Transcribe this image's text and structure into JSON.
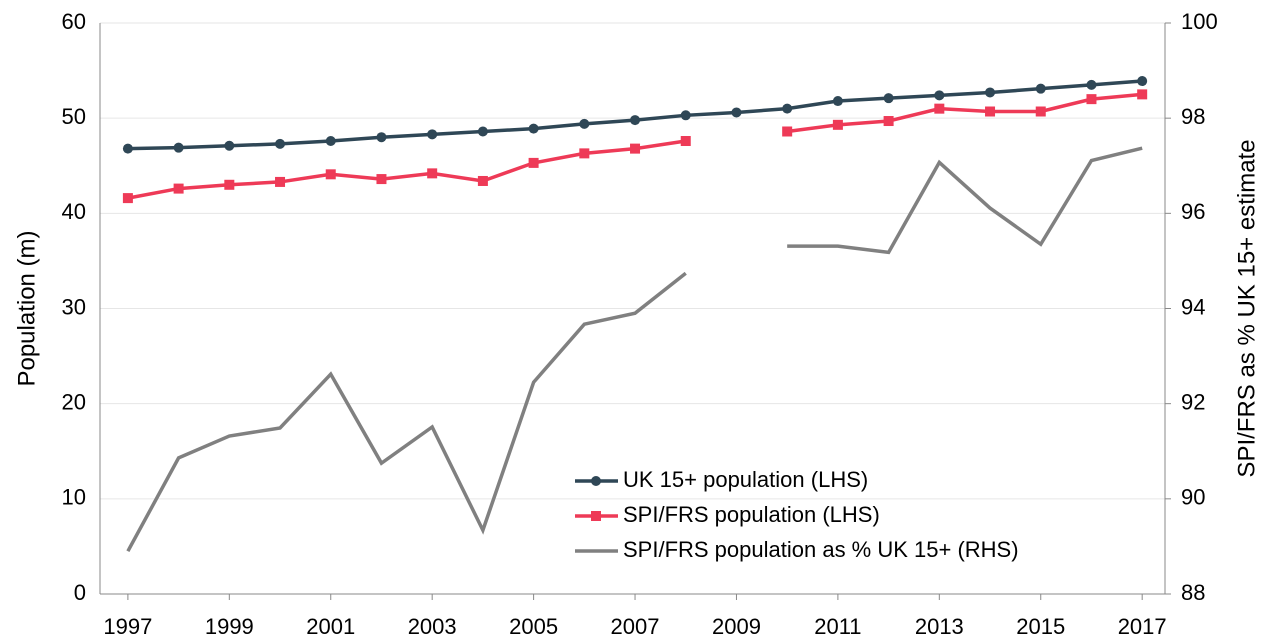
{
  "chart_data": {
    "type": "line",
    "x": [
      1997,
      1998,
      1999,
      2000,
      2001,
      2002,
      2003,
      2004,
      2005,
      2006,
      2007,
      2008,
      2009,
      2010,
      2011,
      2012,
      2013,
      2014,
      2015,
      2016,
      2017
    ],
    "xlim": [
      1996.45,
      2017.45
    ],
    "xticks": [
      1997,
      1999,
      2001,
      2003,
      2005,
      2007,
      2009,
      2011,
      2013,
      2015,
      2017
    ],
    "ylim": [
      0,
      60
    ],
    "yticks": [
      0,
      10,
      20,
      30,
      40,
      50,
      60
    ],
    "y2lim": [
      88,
      100
    ],
    "y2ticks": [
      88,
      90,
      92,
      94,
      96,
      98,
      100
    ],
    "ylabel": "Population (m)",
    "y2label": "SPI/FRS as % UK 15+ estimate",
    "grid": true,
    "series": [
      {
        "name": "UK 15+ population (LHS)",
        "color": "#2f4756",
        "marker": "circle",
        "values": [
          46.8,
          46.9,
          47.1,
          47.3,
          47.6,
          48.0,
          48.3,
          48.6,
          48.9,
          49.4,
          49.8,
          50.3,
          50.6,
          51.0,
          51.8,
          52.1,
          52.4,
          52.7,
          53.1,
          53.5,
          53.9
        ]
      },
      {
        "name": "SPI/FRS population (LHS)",
        "color": "#ee3a57",
        "marker": "square",
        "values": [
          41.6,
          42.6,
          43.0,
          43.3,
          44.1,
          43.6,
          44.2,
          43.4,
          45.3,
          46.3,
          46.8,
          47.6,
          null,
          48.6,
          49.3,
          49.7,
          51.0,
          50.7,
          50.7,
          52.0,
          52.5
        ]
      },
      {
        "name": "SPI/FRS population as % UK 15+ (RHS)",
        "color": "#808080",
        "axis": "y2",
        "values": [
          88.9,
          90.86,
          91.32,
          91.49,
          92.62,
          90.75,
          91.51,
          89.34,
          92.45,
          93.67,
          93.9,
          94.74,
          null,
          95.31,
          95.31,
          95.18,
          97.07,
          96.11,
          95.35,
          97.11,
          97.37
        ]
      }
    ]
  }
}
